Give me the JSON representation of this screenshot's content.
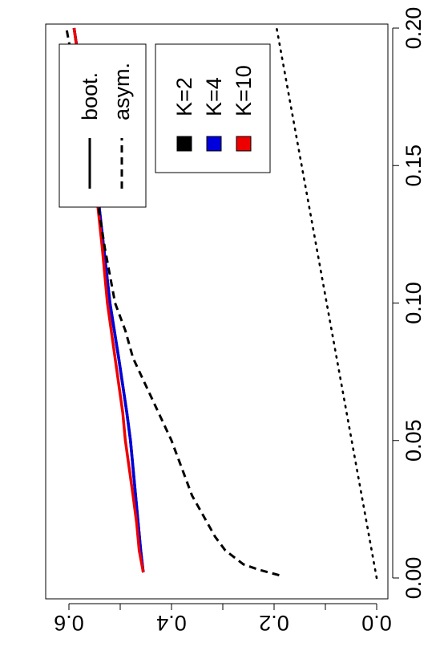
{
  "chart_data": {
    "type": "line",
    "orientation": "rotated-90-clockwise",
    "x_ticks": [
      "0.00",
      "0.05",
      "0.10",
      "0.15",
      "0.20"
    ],
    "y_ticks": [
      "0.0",
      "0.2",
      "0.4",
      "0.6"
    ],
    "xlim": [
      0,
      0.2
    ],
    "ylim": [
      0,
      0.6
    ],
    "grid": false,
    "legend_placement": "top-left",
    "legend_linetype": [
      {
        "label": "boot.",
        "linetype": "solid"
      },
      {
        "label": "asym.",
        "linetype": "dashed"
      }
    ],
    "legend_color": [
      {
        "label": "K=2",
        "color": "#000000"
      },
      {
        "label": "K=4",
        "color": "#0000dd"
      },
      {
        "label": "K=10",
        "color": "#ee0000"
      }
    ],
    "series": [
      {
        "linetype": "solid",
        "color": "#000000",
        "x": [
          0.002,
          0.01,
          0.02,
          0.03,
          0.05,
          0.06,
          0.08,
          0.1,
          0.12,
          0.15,
          0.2
        ],
        "y": [
          0.455,
          0.46,
          0.465,
          0.47,
          0.48,
          0.487,
          0.503,
          0.52,
          0.532,
          0.55,
          0.59
        ]
      },
      {
        "linetype": "solid",
        "color": "#0000dd",
        "x": [
          0.002,
          0.01,
          0.02,
          0.03,
          0.05,
          0.06,
          0.08,
          0.1,
          0.12,
          0.15,
          0.2
        ],
        "y": [
          0.455,
          0.46,
          0.465,
          0.47,
          0.48,
          0.487,
          0.503,
          0.52,
          0.532,
          0.55,
          0.59
        ]
      },
      {
        "linetype": "solid",
        "color": "#ee0000",
        "x": [
          0.002,
          0.01,
          0.02,
          0.03,
          0.05,
          0.06,
          0.08,
          0.1,
          0.12,
          0.15,
          0.2
        ],
        "y": [
          0.455,
          0.463,
          0.468,
          0.475,
          0.49,
          0.495,
          0.51,
          0.525,
          0.535,
          0.552,
          0.59
        ]
      },
      {
        "linetype": "dashed",
        "color": "#000000",
        "x": [
          0.001,
          0.003,
          0.005,
          0.01,
          0.015,
          0.02,
          0.03,
          0.04,
          0.05,
          0.06,
          0.07,
          0.08,
          0.09,
          0.1,
          0.12,
          0.15,
          0.2
        ],
        "y": [
          0.19,
          0.23,
          0.26,
          0.295,
          0.315,
          0.33,
          0.36,
          0.38,
          0.4,
          0.425,
          0.45,
          0.475,
          0.49,
          0.51,
          0.53,
          0.555,
          0.605
        ]
      },
      {
        "linetype": "dotted",
        "color": "#000000",
        "x": [
          0,
          0.2
        ],
        "y": [
          0,
          0.195
        ]
      }
    ]
  }
}
